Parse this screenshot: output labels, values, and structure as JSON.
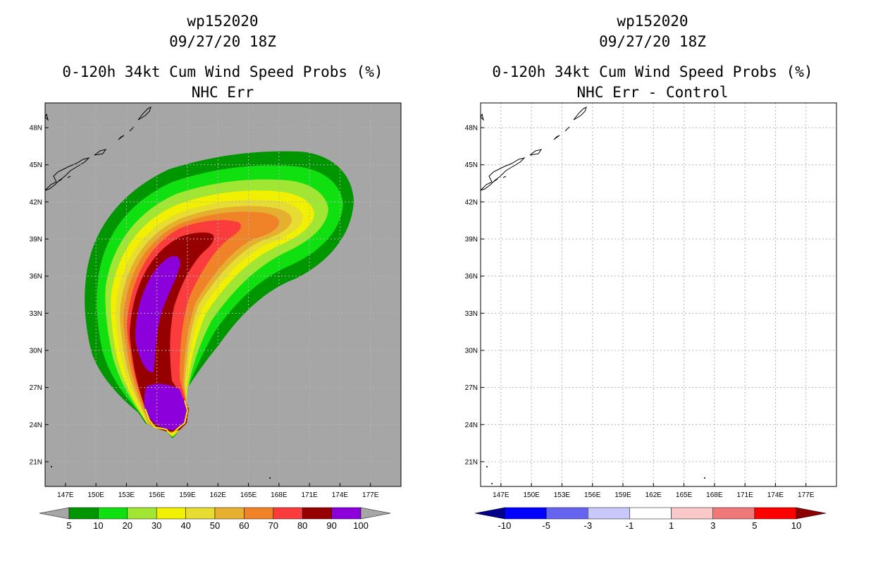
{
  "left_panel": {
    "storm_id": "wp152020",
    "datetime": "09/27/20 18Z",
    "product": "0-120h 34kt Cum Wind Speed Probs (%)",
    "subtitle": "NHC Err"
  },
  "right_panel": {
    "storm_id": "wp152020",
    "datetime": "09/27/20 18Z",
    "product": "0-120h 34kt Cum Wind Speed Probs (%)",
    "subtitle": "NHC Err - Control"
  },
  "colors": {
    "ocean": "#a6a6a6",
    "land_outline": "#000000",
    "grid": "#b4b4b4"
  },
  "chart_data": [
    {
      "type": "heatmap",
      "title": "0-120h 34kt Cum Wind Speed Probs (%) - NHC Err",
      "x_ticks": [
        "147E",
        "150E",
        "153E",
        "156E",
        "159E",
        "162E",
        "165E",
        "168E",
        "171E",
        "174E",
        "177E"
      ],
      "y_ticks": [
        "48N",
        "45N",
        "42N",
        "39N",
        "36N",
        "33N",
        "30N",
        "27N",
        "24N",
        "21N"
      ],
      "xlim": [
        145,
        180
      ],
      "ylim": [
        19,
        50
      ],
      "legend": {
        "labels": [
          "5",
          "10",
          "20",
          "30",
          "40",
          "50",
          "60",
          "70",
          "80",
          "90",
          "100"
        ],
        "colors": [
          "#a6a6a6",
          "#009600",
          "#10e010",
          "#a0e632",
          "#f0f000",
          "#e6dc32",
          "#e6af2d",
          "#f08228",
          "#fa3c3c",
          "#960000",
          "#8c00dc",
          "#a6a6a6"
        ]
      },
      "contour_levels": [
        5,
        10,
        20,
        30,
        40,
        50,
        60,
        70,
        80,
        90,
        100
      ]
    },
    {
      "type": "heatmap",
      "title": "0-120h 34kt Cum Wind Speed Probs (%) - NHC Err - Control",
      "x_ticks": [
        "147E",
        "150E",
        "153E",
        "156E",
        "159E",
        "162E",
        "165E",
        "168E",
        "171E",
        "174E",
        "177E"
      ],
      "y_ticks": [
        "48N",
        "45N",
        "42N",
        "39N",
        "36N",
        "33N",
        "30N",
        "27N",
        "24N",
        "21N"
      ],
      "xlim": [
        145,
        180
      ],
      "ylim": [
        19,
        50
      ],
      "legend": {
        "labels": [
          "-10",
          "-5",
          "-3",
          "-1",
          "1",
          "3",
          "5",
          "10"
        ],
        "colors": [
          "#00008c",
          "#0000ff",
          "#6464f0",
          "#c8c8fa",
          "#ffffff",
          "#fac8c8",
          "#f07878",
          "#ff0000",
          "#8c0000"
        ]
      },
      "differences": "none"
    }
  ]
}
